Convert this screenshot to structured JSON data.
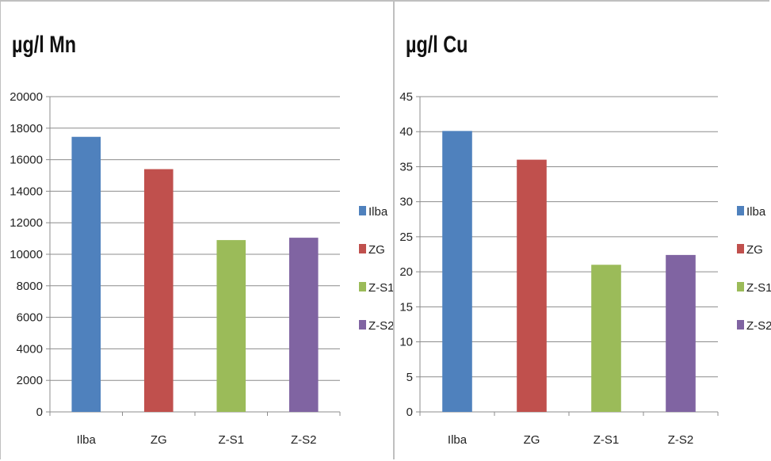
{
  "chart_data": [
    {
      "type": "bar",
      "title": "µg/l Mn",
      "categories": [
        "Ilba",
        "ZG",
        "Z-S1",
        "Z-S2"
      ],
      "values": [
        17450,
        15400,
        10900,
        11050
      ],
      "colors": [
        "#4f81bd",
        "#c0504d",
        "#9bbb59",
        "#8064a2"
      ],
      "ylim": [
        0,
        20000
      ],
      "ytick_step": 2000,
      "yticks": [
        "0",
        "2000",
        "4000",
        "6000",
        "8000",
        "10000",
        "12000",
        "14000",
        "16000",
        "18000",
        "20000"
      ],
      "grid": true,
      "legend": [
        "Ilba",
        "ZG",
        "Z-S1",
        "Z-S2"
      ],
      "legend_position": "right"
    },
    {
      "type": "bar",
      "title": "µg/l Cu",
      "categories": [
        "Ilba",
        "ZG",
        "Z-S1",
        "Z-S2"
      ],
      "values": [
        40.1,
        36.0,
        21.0,
        22.4
      ],
      "colors": [
        "#4f81bd",
        "#c0504d",
        "#9bbb59",
        "#8064a2"
      ],
      "ylim": [
        0,
        45
      ],
      "ytick_step": 5,
      "yticks": [
        "0",
        "5",
        "10",
        "15",
        "20",
        "25",
        "30",
        "35",
        "40",
        "45"
      ],
      "grid": true,
      "legend": [
        "Ilba",
        "ZG",
        "Z-S1",
        "Z-S2"
      ],
      "legend_position": "right"
    }
  ]
}
